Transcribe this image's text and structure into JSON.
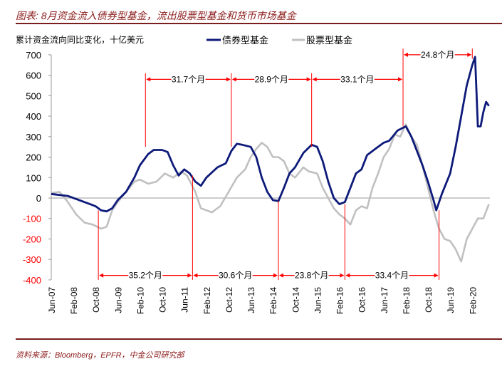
{
  "title": "图表: 8月资金流入债券型基金，流出股票型基金和货币市场基金",
  "source": "资料来源：Bloomberg，EPFR，中金公司研究部",
  "chart_data": {
    "type": "line",
    "ylabel": "累计资金流向同比变化，十亿美元",
    "ylim": [
      -400,
      700
    ],
    "yticks": [
      700,
      600,
      500,
      400,
      300,
      200,
      100,
      0,
      -100,
      -200,
      -300,
      -400
    ],
    "x_unit": "months since Jun-07",
    "xlim": [
      0,
      158
    ],
    "xticks": [
      "Jun-07",
      "Feb-08",
      "Oct-08",
      "Jun-09",
      "Feb-10",
      "Oct-10",
      "Jun-11",
      "Feb-12",
      "Oct-12",
      "Jun-13",
      "Feb-14",
      "Oct-14",
      "Jun-15",
      "Feb-16",
      "Oct-16",
      "Jun-17",
      "Feb-18",
      "Oct-18",
      "Jun-19",
      "Feb-20"
    ],
    "legend_position": "top",
    "colors": {
      "bond": "#0d1a7a",
      "equity": "#c0c0c0",
      "annotation": "#ff0000",
      "axis_label": "#ff0000"
    },
    "series": [
      {
        "name": "债券型基金",
        "key": "bond",
        "x": [
          0,
          6,
          12,
          16,
          18,
          20,
          22,
          24,
          27,
          30,
          32,
          35,
          37,
          40,
          42,
          44,
          46,
          48,
          50,
          52,
          54,
          56,
          60,
          63,
          65,
          67,
          69,
          72,
          74,
          76,
          78,
          80,
          82,
          84,
          86,
          88,
          91,
          94,
          96,
          98,
          100,
          102,
          104,
          106,
          108,
          110,
          112,
          114,
          117,
          120,
          122,
          125,
          128,
          130,
          132,
          134,
          136,
          138,
          139,
          141,
          144,
          146,
          148,
          150,
          152,
          153,
          154,
          155,
          156,
          157,
          158
        ],
        "values": [
          20,
          10,
          -20,
          -40,
          -60,
          -65,
          -50,
          -10,
          30,
          100,
          160,
          215,
          235,
          235,
          225,
          160,
          110,
          140,
          120,
          80,
          60,
          100,
          150,
          170,
          230,
          265,
          260,
          250,
          200,
          100,
          30,
          -10,
          -15,
          50,
          120,
          150,
          220,
          260,
          250,
          180,
          80,
          0,
          -30,
          -20,
          50,
          120,
          140,
          210,
          240,
          270,
          280,
          330,
          350,
          300,
          230,
          160,
          80,
          -10,
          -60,
          20,
          120,
          250,
          400,
          550,
          650,
          690,
          350,
          350,
          420,
          470,
          450
        ]
      },
      {
        "name": "股票型基金",
        "key": "equity",
        "x": [
          0,
          3,
          6,
          9,
          12,
          15,
          18,
          20,
          22,
          24,
          27,
          30,
          32,
          35,
          38,
          41,
          44,
          47,
          49,
          52,
          54,
          56,
          58,
          61,
          64,
          67,
          70,
          72,
          74,
          76,
          78,
          80,
          82,
          84,
          86,
          88,
          91,
          93,
          96,
          98,
          100,
          102,
          104,
          106,
          108,
          110,
          112,
          114,
          116,
          118,
          120,
          122,
          124,
          126,
          128,
          130,
          132,
          134,
          136,
          138,
          140,
          142,
          144,
          146,
          148,
          150,
          152,
          154,
          156,
          158
        ],
        "values": [
          25,
          30,
          -20,
          -80,
          -120,
          -130,
          -150,
          -140,
          -60,
          -20,
          30,
          80,
          90,
          70,
          80,
          120,
          100,
          130,
          110,
          30,
          -50,
          -60,
          -70,
          -40,
          30,
          100,
          140,
          200,
          240,
          270,
          250,
          200,
          200,
          180,
          120,
          100,
          150,
          130,
          120,
          50,
          0,
          -50,
          -80,
          -100,
          -130,
          -60,
          -40,
          -50,
          50,
          120,
          200,
          240,
          310,
          300,
          360,
          300,
          260,
          160,
          50,
          -60,
          -150,
          -200,
          -210,
          -250,
          -310,
          -200,
          -150,
          -100,
          -100,
          -30
        ]
      }
    ],
    "annotations": {
      "top": [
        {
          "from": 34,
          "to": 65,
          "label": "31.7个月",
          "level": 590
        },
        {
          "from": 65,
          "to": 94,
          "label": "28.9个月",
          "level": 590
        },
        {
          "from": 94,
          "to": 127,
          "label": "33.1个月",
          "level": 590
        },
        {
          "from": 127,
          "to": 152,
          "label": "24.8个月",
          "level": 710
        }
      ],
      "bottom": [
        {
          "from": 17,
          "to": 51,
          "label": "35.2个月"
        },
        {
          "from": 51,
          "to": 82,
          "label": "30.6个月"
        },
        {
          "from": 82,
          "to": 106,
          "label": "23.8个月"
        },
        {
          "from": 106,
          "to": 140,
          "label": "33.4个月"
        }
      ]
    }
  }
}
